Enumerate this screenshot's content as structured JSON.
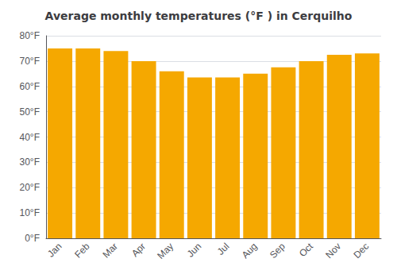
{
  "chart_data": {
    "type": "bar",
    "title": "Average monthly temperatures (°F ) in Cerquilho",
    "categories": [
      "Jan",
      "Feb",
      "Mar",
      "Apr",
      "May",
      "Jun",
      "Jul",
      "Aug",
      "Sep",
      "Oct",
      "Nov",
      "Dec"
    ],
    "values": [
      75,
      75,
      74,
      70,
      66,
      63.5,
      63.5,
      65,
      67.5,
      70,
      72.5,
      73
    ],
    "color": "#F5A800",
    "ylim": [
      0,
      80
    ],
    "yticks": [
      {
        "value": 0,
        "label": "0°F"
      },
      {
        "value": 10,
        "label": "10°F"
      },
      {
        "value": 20,
        "label": "20°F"
      },
      {
        "value": 30,
        "label": "30°F"
      },
      {
        "value": 40,
        "label": "40°F"
      },
      {
        "value": 50,
        "label": "50°F"
      },
      {
        "value": 60,
        "label": "60°F"
      },
      {
        "value": 70,
        "label": "70°F"
      },
      {
        "value": 80,
        "label": "80°F"
      }
    ],
    "grid": true
  }
}
